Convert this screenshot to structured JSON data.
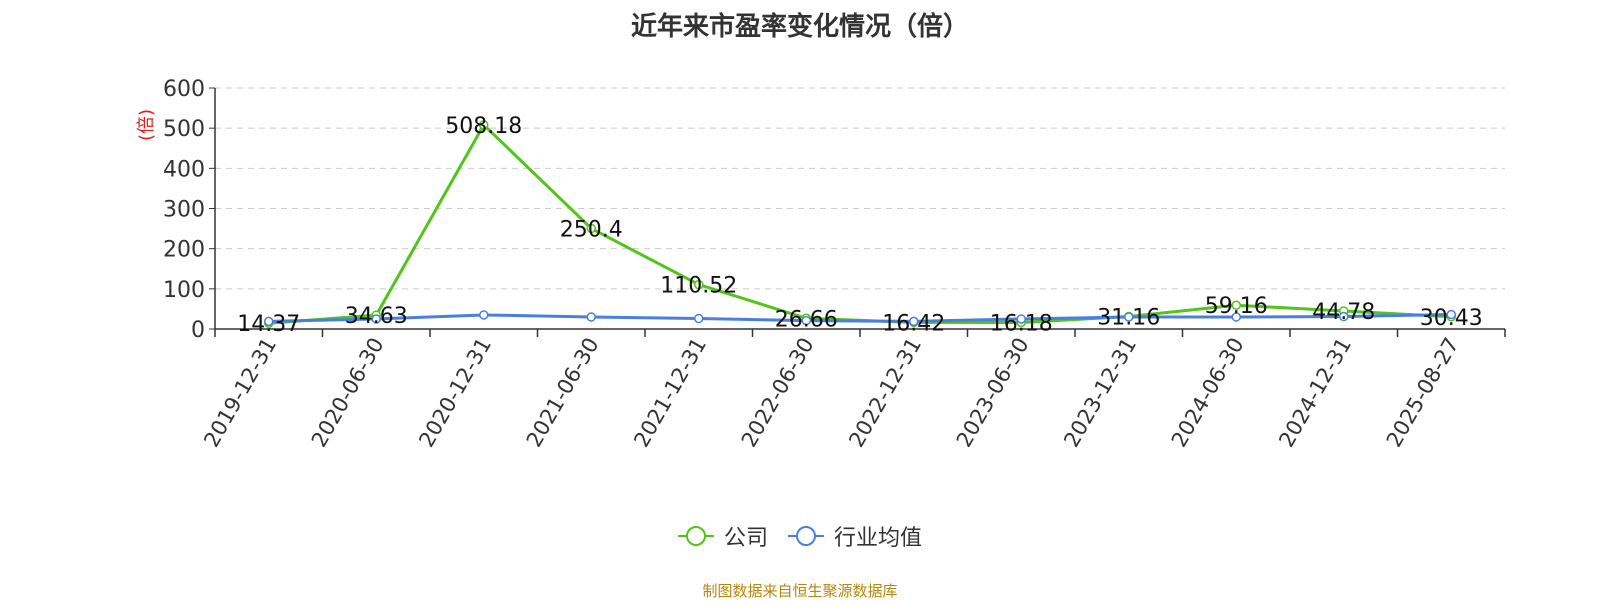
{
  "chart_data": {
    "type": "line",
    "title": "近年来市盈率变化情况（倍）",
    "ylabel": "(倍)",
    "ylim": [
      0,
      600
    ],
    "yticks": [
      0,
      100,
      200,
      300,
      400,
      500,
      600
    ],
    "categories": [
      "2019-12-31",
      "2020-06-30",
      "2020-12-31",
      "2021-06-30",
      "2021-12-31",
      "2022-06-30",
      "2022-12-31",
      "2023-06-30",
      "2023-12-31",
      "2024-06-30",
      "2024-12-31",
      "2025-08-27"
    ],
    "series": [
      {
        "name": "公司",
        "color": "#52c41a",
        "values": [
          14.37,
          34.63,
          508.18,
          250.4,
          110.52,
          26.66,
          16.42,
          16.18,
          31.16,
          59.16,
          44.78,
          30.43
        ],
        "labels": [
          "14.37",
          "34.63",
          "508.18",
          "250.4",
          "110.52",
          "26.66",
          "16.42",
          "16.18",
          "31.16",
          "59.16",
          "44.78",
          "30.43"
        ]
      },
      {
        "name": "行业均值",
        "color": "#4a7fe0",
        "values": [
          19,
          25,
          35,
          30,
          26,
          21,
          19,
          25,
          30,
          30,
          31,
          36
        ]
      }
    ],
    "grid": true,
    "legend_position": "bottom"
  },
  "source_text": "制图数据来自恒生聚源数据库"
}
